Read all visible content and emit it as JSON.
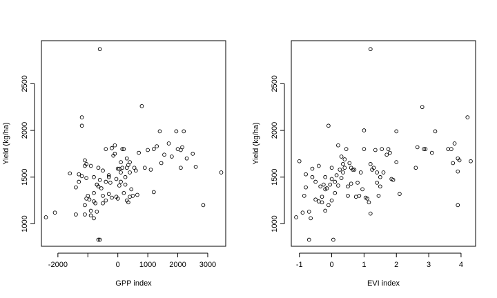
{
  "chart_data": [
    {
      "type": "scatter",
      "xlabel": "GPP index",
      "ylabel": "Yield (kg/ha)",
      "xlim": [
        -2550,
        3600
      ],
      "ylim": [
        760,
        2960
      ],
      "xticks": [
        -2000,
        -1000,
        0,
        1000,
        2000,
        3000
      ],
      "xtick_labels": [
        "-2000",
        "",
        "0",
        "1000",
        "2000",
        "3000"
      ],
      "yticks": [
        1000,
        1500,
        2000,
        2500
      ],
      "ytick_labels": [
        "1000",
        "1500",
        "2000",
        "2500"
      ],
      "grid": false,
      "x": [
        -600,
        -2400,
        -2100,
        -1400,
        -1400,
        -1300,
        -1200,
        -1200,
        -1100,
        -1100,
        -1100,
        -1100,
        -1050,
        -1050,
        -1000,
        -950,
        -900,
        -900,
        -800,
        -800,
        -800,
        -750,
        -700,
        -700,
        -650,
        -650,
        -650,
        -600,
        -600,
        -550,
        -500,
        -500,
        -400,
        -400,
        -400,
        -300,
        -300,
        -250,
        -200,
        -200,
        -150,
        -100,
        -100,
        -50,
        -50,
        0,
        0,
        50,
        50,
        100,
        100,
        150,
        150,
        200,
        250,
        250,
        300,
        300,
        350,
        400,
        400,
        450,
        500,
        600,
        650,
        700,
        800,
        900,
        1000,
        1100,
        1200,
        1300,
        1400,
        1450,
        1550,
        1700,
        1800,
        1950,
        2000,
        2100,
        2150,
        2200,
        2300,
        2500,
        2600,
        2850,
        3450,
        400,
        1200,
        2100,
        -1200,
        -900,
        -1300,
        -700,
        100,
        -300,
        200,
        350,
        -500,
        -1050,
        300,
        550,
        -800,
        -1600
      ],
      "y": [
        2870,
        1070,
        1120,
        1390,
        1100,
        1530,
        1510,
        2050,
        1620,
        1200,
        1100,
        1680,
        1640,
        1490,
        1300,
        1260,
        1090,
        1140,
        1240,
        1060,
        1500,
        1220,
        1420,
        1130,
        830,
        1400,
        1600,
        830,
        1470,
        1380,
        1300,
        1570,
        1450,
        1250,
        1800,
        1520,
        1320,
        1440,
        1280,
        1810,
        1730,
        1750,
        1840,
        1290,
        1480,
        1590,
        1270,
        1410,
        1590,
        1450,
        1550,
        1800,
        1600,
        1330,
        1500,
        1420,
        1250,
        1600,
        1630,
        1290,
        1550,
        1370,
        1300,
        1570,
        1310,
        1760,
        2260,
        1600,
        1790,
        1580,
        1800,
        1830,
        1990,
        1650,
        1740,
        1860,
        1720,
        1990,
        1800,
        1790,
        1820,
        1990,
        1700,
        1750,
        1610,
        1200,
        1550,
        1660,
        1340,
        1600,
        2140,
        1620,
        1450,
        1420,
        1660,
        1500,
        1800,
        1230,
        1220,
        1270,
        1700,
        1600,
        1330,
        1540
      ]
    },
    {
      "type": "scatter",
      "xlabel": "EVI index",
      "ylabel": "Yield (kg/ha)",
      "xlim": [
        -1.25,
        4.45
      ],
      "ylim": [
        760,
        2960
      ],
      "xticks": [
        -1,
        0,
        1,
        2,
        3,
        4
      ],
      "xtick_labels": [
        "-1",
        "0",
        "1",
        "2",
        "3",
        "4"
      ],
      "yticks": [
        1000,
        1500,
        2000,
        2500
      ],
      "ytick_labels": [
        "1000",
        "1500",
        "2000",
        "2500"
      ],
      "grid": false,
      "x": [
        -1.1,
        -1.0,
        -0.9,
        -0.85,
        -0.8,
        -0.8,
        -0.7,
        -0.7,
        -0.65,
        -0.6,
        -0.5,
        -0.5,
        -0.4,
        -0.4,
        -0.35,
        -0.3,
        -0.3,
        -0.25,
        -0.2,
        -0.2,
        -0.15,
        -0.1,
        -0.1,
        -0.05,
        0.0,
        0.0,
        0.0,
        0.05,
        0.1,
        0.15,
        0.2,
        0.2,
        0.25,
        0.3,
        0.35,
        0.35,
        0.4,
        0.4,
        0.45,
        0.5,
        0.5,
        0.55,
        0.6,
        0.65,
        0.7,
        0.75,
        0.8,
        0.85,
        0.9,
        0.95,
        1.0,
        1.0,
        1.05,
        1.1,
        1.15,
        1.2,
        1.2,
        1.25,
        1.3,
        1.35,
        1.4,
        1.45,
        1.5,
        1.5,
        1.55,
        1.6,
        1.7,
        1.75,
        1.8,
        1.85,
        1.9,
        2.0,
        2.0,
        2.1,
        2.6,
        2.65,
        2.8,
        2.85,
        2.9,
        3.1,
        3.2,
        3.6,
        3.7,
        3.75,
        3.8,
        3.9,
        3.9,
        3.9,
        3.95,
        4.2,
        4.3,
        1.2,
        0.1,
        -0.2,
        0.6,
        1.4,
        0.3,
        -0.6
      ],
      "y": [
        1070,
        1670,
        1120,
        1300,
        1390,
        1530,
        830,
        1130,
        1060,
        1500,
        1260,
        1450,
        1620,
        1240,
        1400,
        1290,
        1230,
        1420,
        1140,
        1500,
        1380,
        1200,
        2050,
        1420,
        1480,
        1250,
        1600,
        830,
        1330,
        1520,
        1840,
        1410,
        1580,
        1720,
        1550,
        1640,
        1600,
        1690,
        1800,
        1300,
        1400,
        1650,
        1600,
        1580,
        1580,
        1290,
        1440,
        1300,
        1550,
        1370,
        1800,
        2000,
        1280,
        1270,
        1230,
        1110,
        1640,
        1580,
        1600,
        1790,
        1440,
        1300,
        1500,
        1400,
        1800,
        1550,
        1740,
        1800,
        1760,
        1480,
        1470,
        1990,
        1660,
        1320,
        1600,
        1820,
        2250,
        1800,
        1800,
        1760,
        1990,
        1800,
        1800,
        1650,
        1860,
        1200,
        1700,
        1560,
        1680,
        2140,
        1670,
        2870,
        1450,
        1370,
        1430,
        1550,
        1490,
        1590
      ]
    }
  ]
}
